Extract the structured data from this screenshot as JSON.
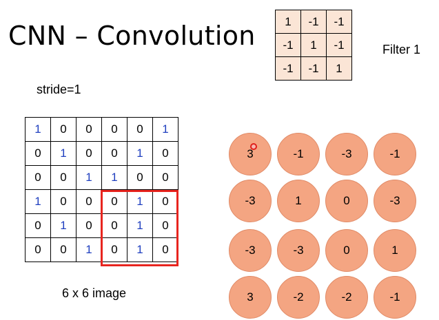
{
  "title": "CNN – Convolution",
  "filter": {
    "label": "Filter 1",
    "rows": [
      [
        "1",
        "-1",
        "-1"
      ],
      [
        "-1",
        "1",
        "-1"
      ],
      [
        "-1",
        "-1",
        "1"
      ]
    ]
  },
  "stride_label": "stride=1",
  "image": {
    "label": "6 x 6 image",
    "rows": [
      [
        "1",
        "0",
        "0",
        "0",
        "0",
        "1"
      ],
      [
        "0",
        "1",
        "0",
        "0",
        "1",
        "0"
      ],
      [
        "0",
        "0",
        "1",
        "1",
        "0",
        "0"
      ],
      [
        "1",
        "0",
        "0",
        "0",
        "1",
        "0"
      ],
      [
        "0",
        "1",
        "0",
        "0",
        "1",
        "0"
      ],
      [
        "0",
        "0",
        "1",
        "0",
        "1",
        "0"
      ]
    ]
  },
  "feature_map": [
    [
      "3",
      "-1",
      "-3",
      "-1"
    ],
    [
      "-3",
      "1",
      "0",
      "-3"
    ],
    [
      "-3",
      "-3",
      "0",
      "1"
    ],
    [
      "3",
      "-2",
      "-2",
      "-1"
    ]
  ],
  "colors": {
    "highlight": "#e8251f",
    "filter_bg": "#fbe5d6",
    "circle_fill": "#f4a582",
    "one_digit": "#1f3fbf"
  }
}
